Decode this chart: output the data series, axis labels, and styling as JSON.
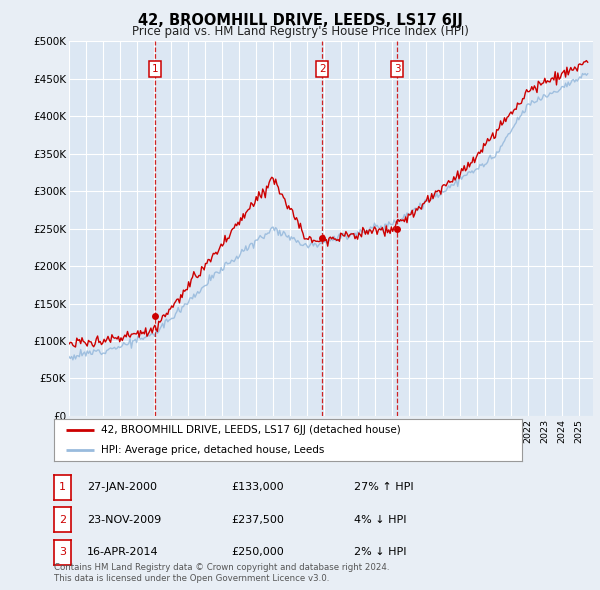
{
  "title": "42, BROOMHILL DRIVE, LEEDS, LS17 6JJ",
  "subtitle": "Price paid vs. HM Land Registry's House Price Index (HPI)",
  "ylim": [
    0,
    500000
  ],
  "yticks": [
    0,
    50000,
    100000,
    150000,
    200000,
    250000,
    300000,
    350000,
    400000,
    450000,
    500000
  ],
  "ytick_labels": [
    "£0",
    "£50K",
    "£100K",
    "£150K",
    "£200K",
    "£250K",
    "£300K",
    "£350K",
    "£400K",
    "£450K",
    "£500K"
  ],
  "xlim_start": 1995,
  "xlim_end": 2025.8,
  "background_color": "#e8eef5",
  "plot_bg_color": "#dce7f3",
  "grid_color": "#ffffff",
  "sale_dates_display": [
    "27-JAN-2000",
    "23-NOV-2009",
    "16-APR-2014"
  ],
  "sale_prices_display": [
    "£133,000",
    "£237,500",
    "£250,000"
  ],
  "sale_hpi_display": [
    "27% ↑ HPI",
    "4% ↓ HPI",
    "2% ↓ HPI"
  ],
  "sale_labels": [
    "1",
    "2",
    "3"
  ],
  "sale_year_decimals": [
    2000.07,
    2009.9,
    2014.29
  ],
  "sale_prices": [
    133000,
    237500,
    250000
  ],
  "legend_property": "42, BROOMHILL DRIVE, LEEDS, LS17 6JJ (detached house)",
  "legend_hpi": "HPI: Average price, detached house, Leeds",
  "footer_line1": "Contains HM Land Registry data © Crown copyright and database right 2024.",
  "footer_line2": "This data is licensed under the Open Government Licence v3.0.",
  "property_line_color": "#cc0000",
  "hpi_line_color": "#99bbdd",
  "vline_color": "#cc0000",
  "marker_box_color": "#cc0000"
}
